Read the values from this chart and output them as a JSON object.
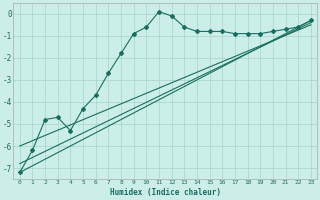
{
  "xlabel": "Humidex (Indice chaleur)",
  "bg_color": "#cceee8",
  "grid_color": "#aad8d0",
  "line_color": "#1a6e60",
  "xlim": [
    -0.5,
    23.5
  ],
  "ylim": [
    -7.5,
    0.5
  ],
  "yticks": [
    0,
    -1,
    -2,
    -3,
    -4,
    -5,
    -6,
    -7
  ],
  "xticks": [
    0,
    1,
    2,
    3,
    4,
    5,
    6,
    7,
    8,
    9,
    10,
    11,
    12,
    13,
    14,
    15,
    16,
    17,
    18,
    19,
    20,
    21,
    22,
    23
  ],
  "curve1_x": [
    0,
    1,
    2,
    3,
    4,
    5,
    6,
    7,
    8,
    9,
    10,
    11,
    12,
    13,
    14,
    15,
    16,
    17,
    18,
    19,
    20,
    21,
    22,
    23
  ],
  "curve1_y": [
    -7.2,
    -6.2,
    -4.8,
    -4.7,
    -5.3,
    -4.3,
    -3.7,
    -2.7,
    -1.8,
    -0.9,
    -0.6,
    0.1,
    -0.1,
    -0.6,
    -0.8,
    -0.8,
    -0.8,
    -0.9,
    -0.9,
    -0.9,
    -0.8,
    -0.7,
    -0.6,
    -0.3
  ],
  "line1_x": [
    0,
    23
  ],
  "line1_y": [
    -7.2,
    -0.3
  ],
  "line2_x": [
    0,
    23
  ],
  "line2_y": [
    -6.8,
    -0.4
  ],
  "line3_x": [
    0,
    23
  ],
  "line3_y": [
    -6.0,
    -0.5
  ]
}
